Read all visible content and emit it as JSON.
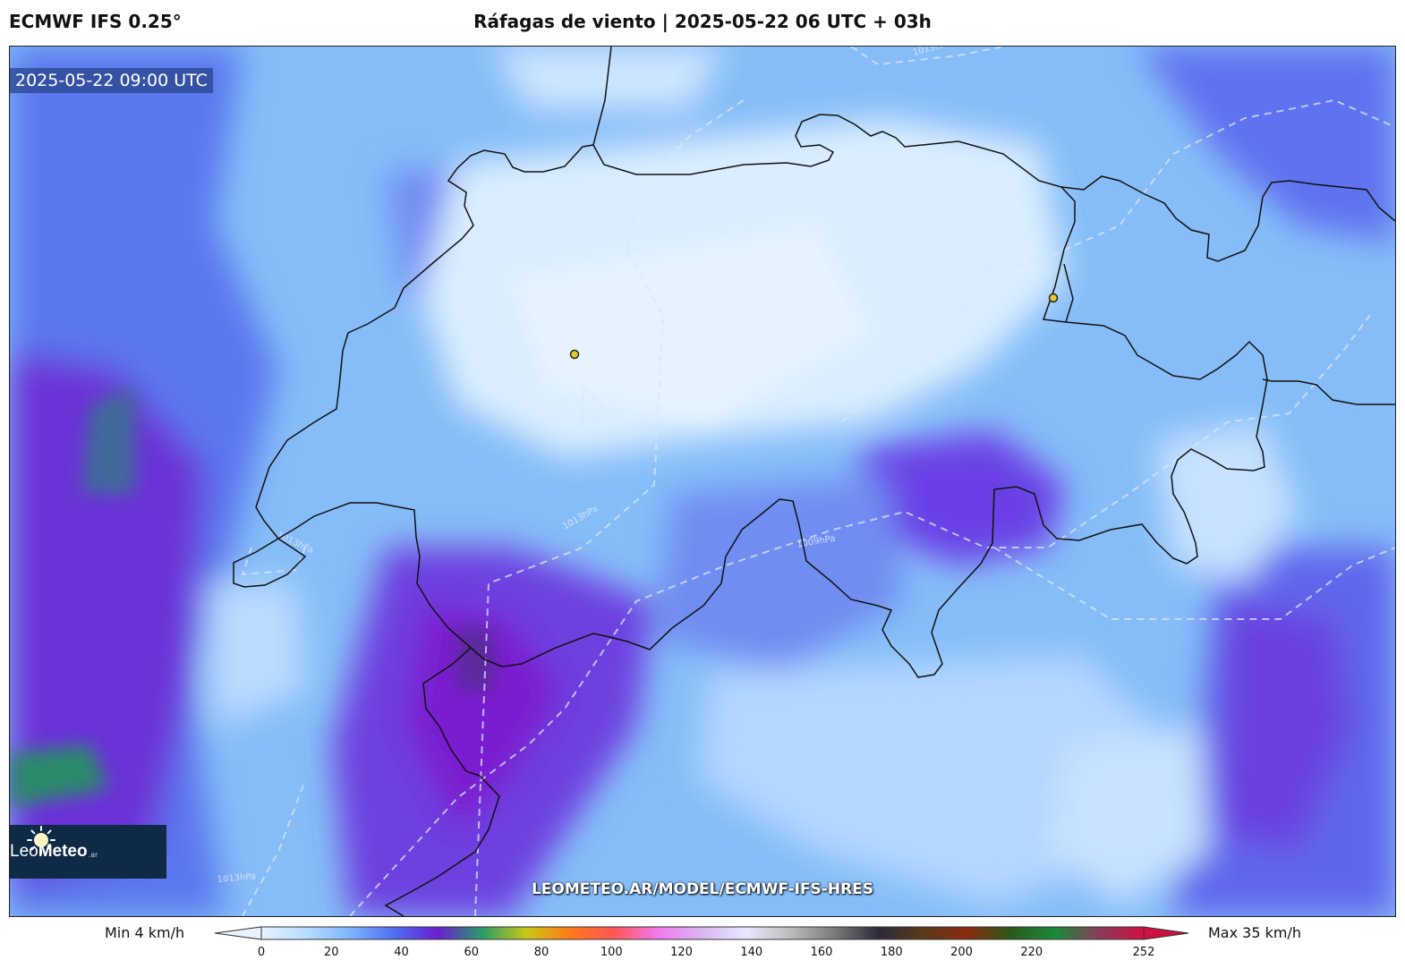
{
  "header": {
    "model": "ECMWF IFS 0.25°",
    "title": "Ráfagas de viento | 2025-05-22 06 UTC + 03h"
  },
  "map": {
    "timestamp": "2025-05-22 09:00 UTC",
    "watermark": "LEOMETEO.AR/MODEL/ECMWF-IFS-HRES",
    "isobar_labels": [
      "1013hPa",
      "1011hPa",
      "1013hPa",
      "1009hPa",
      "1013hPa",
      "1013hPa"
    ],
    "city_markers": 2,
    "border_color": "#111111",
    "isobar_color": "#d8e6ff"
  },
  "logo": {
    "name_light": "Leo",
    "name_bold": "Meteo",
    "suffix": ".ar"
  },
  "legend": {
    "min_label": "Min 4 km/h",
    "max_label": "Max 35 km/h",
    "ticks": [
      "0",
      "20",
      "40",
      "60",
      "80",
      "100",
      "120",
      "140",
      "160",
      "180",
      "200",
      "220",
      "252"
    ],
    "colors": [
      "#e8f3ff",
      "#b8dcff",
      "#7fb6ff",
      "#4f6ff0",
      "#6a1fd0",
      "#2a9a6a",
      "#c8c814",
      "#ff7a1a",
      "#ff5555",
      "#f07af0",
      "#d8b8f0",
      "#e8e8ff",
      "#bcbcbc",
      "#7a7a7a",
      "#2a2a3a",
      "#5a3a1a",
      "#8a2a10",
      "#2a5a1a",
      "#1a8a3a",
      "#8a3a5a",
      "#d01040"
    ]
  }
}
